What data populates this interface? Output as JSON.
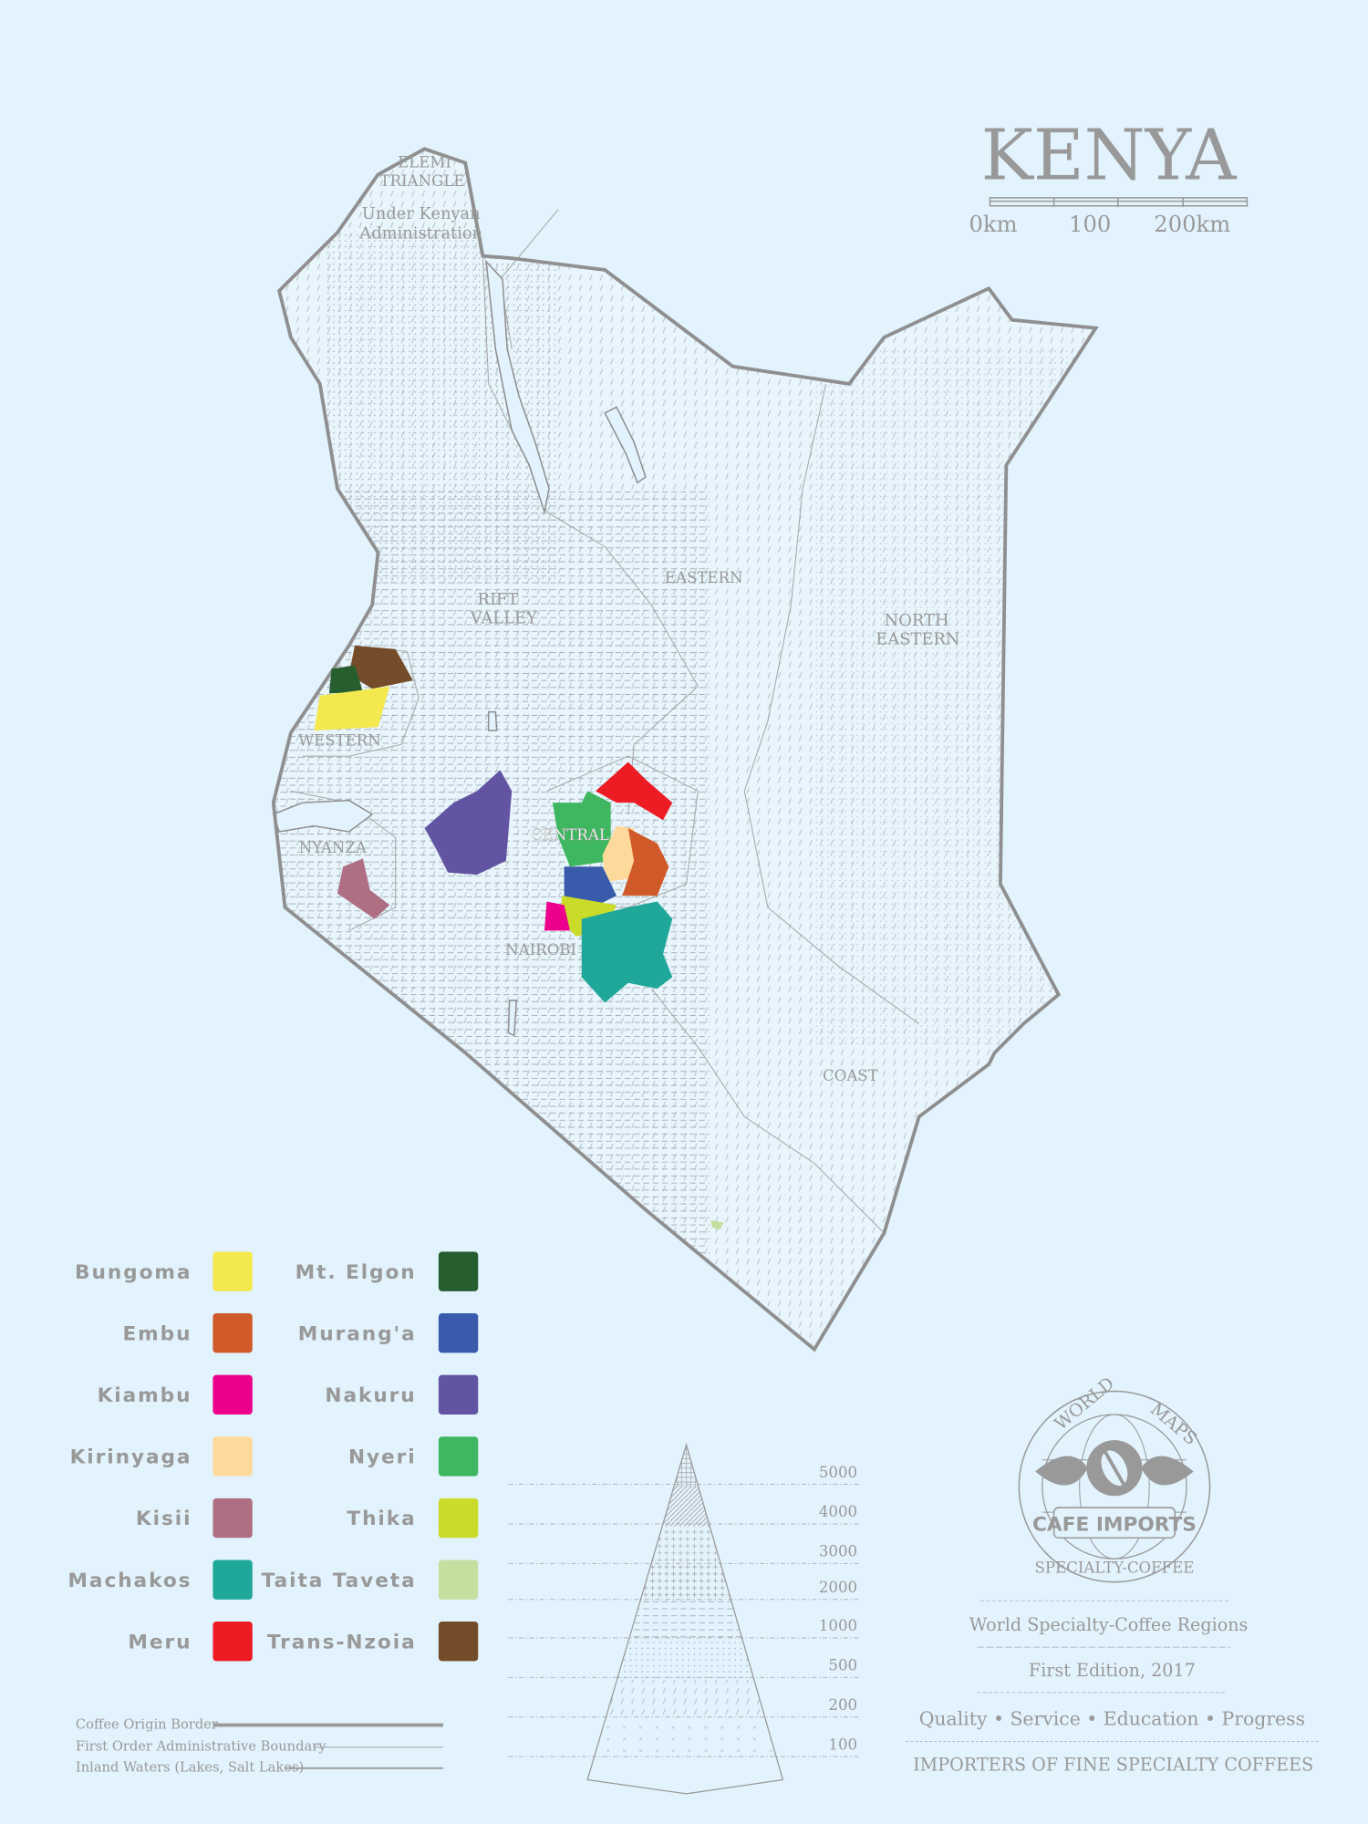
{
  "title": "KENYA",
  "scale": {
    "start": "0km",
    "mid": "100",
    "end": "200km"
  },
  "region_labels": [
    {
      "id": "elemi1",
      "text": "ELEMI"
    },
    {
      "id": "elemi2",
      "text": "TRIANGLE"
    },
    {
      "id": "elemi3",
      "text": "Under Kenyan"
    },
    {
      "id": "elemi4",
      "text": "Administration"
    },
    {
      "id": "rift1",
      "text": "RIFT"
    },
    {
      "id": "rift2",
      "text": "VALLEY"
    },
    {
      "id": "eastern",
      "text": "EASTERN"
    },
    {
      "id": "ne1",
      "text": "NORTH"
    },
    {
      "id": "ne2",
      "text": "EASTERN"
    },
    {
      "id": "western",
      "text": "WESTERN"
    },
    {
      "id": "nyanza",
      "text": "NYANZA"
    },
    {
      "id": "central",
      "text": "CENTRAL"
    },
    {
      "id": "nairobi",
      "text": "NAIROBI"
    },
    {
      "id": "coast",
      "text": "COAST"
    }
  ],
  "coffee_regions": [
    {
      "name": "Bungoma",
      "color": "#f4e84f"
    },
    {
      "name": "Embu",
      "color": "#d15a2a"
    },
    {
      "name": "Kiambu",
      "color": "#ec008c"
    },
    {
      "name": "Kirinyaga",
      "color": "#fdd99b"
    },
    {
      "name": "Kisii",
      "color": "#ae6f83"
    },
    {
      "name": "Machakos",
      "color": "#1fa89a"
    },
    {
      "name": "Meru",
      "color": "#ed1c24"
    },
    {
      "name": "Mt. Elgon",
      "color": "#275e2f"
    },
    {
      "name": "Murang'a",
      "color": "#3a5bab"
    },
    {
      "name": "Nakuru",
      "color": "#6354a3"
    },
    {
      "name": "Nyeri",
      "color": "#3fb760"
    },
    {
      "name": "Thika",
      "color": "#cbdb2a"
    },
    {
      "name": "Taita Taveta",
      "color": "#c3e0a1"
    },
    {
      "name": "Trans-Nzoia",
      "color": "#754c29"
    }
  ],
  "line_legend": [
    "Coffee Origin Border",
    "First Order Administrative Boundary",
    "Inland Waters (Lakes, Salt Lakes)"
  ],
  "elevation_levels": [
    "5000",
    "4000",
    "3000",
    "2000",
    "1000",
    "500",
    "200",
    "100"
  ],
  "logo": {
    "top_left": "WORLD",
    "top_right": "MAPS",
    "center": "CAFE IMPORTS",
    "bottom": "SPECIALTY-COFFEE"
  },
  "footer": {
    "series": "World Specialty-Coffee Regions",
    "edition": "First Edition, 2017",
    "motto": "Quality • Service • Education • Progress",
    "tagline": "IMPORTERS OF FINE SPECIALTY COFFEES"
  },
  "colors": {
    "background": "#e2f3fd",
    "ink": "#999999",
    "border": "#8f8f8f"
  }
}
